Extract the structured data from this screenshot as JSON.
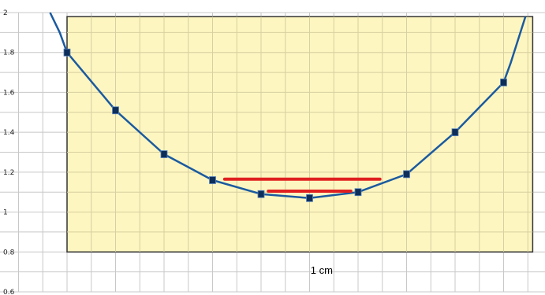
{
  "chart_data": {
    "type": "line",
    "title": "",
    "xlabel": "",
    "ylabel": "",
    "xlim": [
      -0.5,
      9.6
    ],
    "ylim": [
      0.6,
      2.0
    ],
    "y_ticks": [
      "0.6",
      "0.8",
      "1",
      "1.2",
      "1.4",
      "1.6",
      "1.8",
      "2"
    ],
    "grid": true,
    "legend": "none",
    "series": [
      {
        "x": [
          0,
          1,
          2,
          3,
          4,
          5,
          6,
          7,
          8,
          9
        ],
        "values": [
          1.8,
          1.51,
          1.29,
          1.16,
          1.09,
          1.07,
          1.1,
          1.19,
          1.4,
          1.65
        ]
      }
    ],
    "curve_extension": {
      "x": [
        -0.35,
        -0.15,
        9.15,
        9.45
      ],
      "values": [
        2.0,
        1.9,
        1.75,
        1.98
      ]
    },
    "region": {
      "x_range": [
        0,
        9.6
      ],
      "y_range": [
        0.8,
        1.98
      ]
    },
    "red_lines": [
      {
        "x_range": [
          3.25,
          6.45
        ],
        "y": 1.165
      },
      {
        "x_range": [
          4.15,
          5.85
        ],
        "y": 1.105
      }
    ],
    "annotation": {
      "text": "1 cm",
      "x": 5.25,
      "y": 0.69
    }
  },
  "colors": {
    "region_fill": "#fdf5b6",
    "grid": "#c8c8c8",
    "line": "#1b5aa0",
    "marker": "#0e2e5a",
    "red": "#e02020"
  }
}
